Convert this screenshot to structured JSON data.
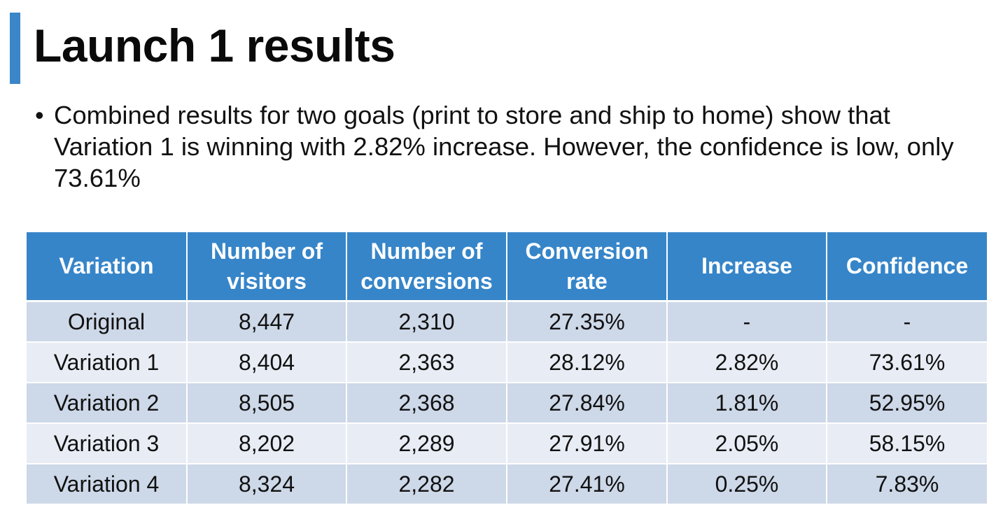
{
  "slide": {
    "title": "Launch 1 results",
    "bullet": "Combined results for two goals (print to store and ship to home) show that Variation 1 is winning with 2.82% increase. However, the confidence is low, only 73.61%"
  },
  "table": {
    "headers": [
      [
        "Variation"
      ],
      [
        "Number of",
        "visitors"
      ],
      [
        "Number of",
        "conversions"
      ],
      [
        "Conversion",
        "rate"
      ],
      [
        "Increase"
      ],
      [
        "Confidence"
      ]
    ],
    "rows": [
      [
        "Original",
        "8,447",
        "2,310",
        "27.35%",
        "-",
        "-"
      ],
      [
        "Variation 1",
        "8,404",
        "2,363",
        "28.12%",
        "2.82%",
        "73.61%"
      ],
      [
        "Variation 2",
        "8,505",
        "2,368",
        "27.84%",
        "1.81%",
        "52.95%"
      ],
      [
        "Variation 3",
        "8,202",
        "2,289",
        "27.91%",
        "2.05%",
        "58.15%"
      ],
      [
        "Variation 4",
        "8,324",
        "2,282",
        "27.41%",
        "0.25%",
        "7.83%"
      ]
    ]
  },
  "colors": {
    "accent": "#3a86c8",
    "header_bg": "#3685c9",
    "row_dark": "#cdd8e8",
    "row_light": "#e8edf5"
  }
}
